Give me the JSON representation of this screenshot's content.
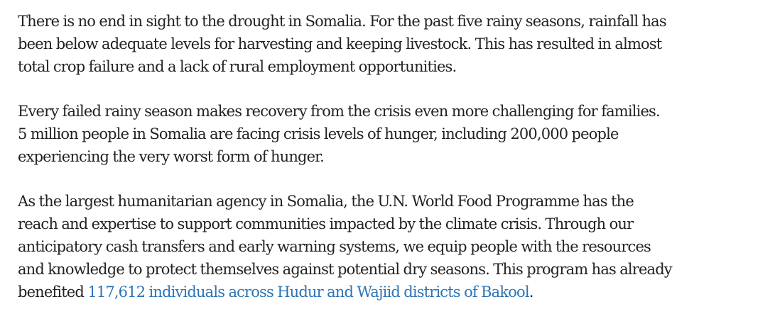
{
  "article": {
    "paragraphs": [
      {
        "lines": [
          "There is no end in sight to the drought in Somalia. For the past five rainy seasons, rainfall has",
          "been below adequate levels for harvesting and keeping livestock. This has resulted in almost",
          "total crop failure and a lack of rural employment opportunities."
        ]
      },
      {
        "lines": [
          "Every failed rainy season makes recovery from the crisis even more challenging for families.",
          "5 million people in Somalia are facing crisis levels of hunger, including 200,000 people",
          "experiencing the very worst form of hunger."
        ]
      },
      {
        "lines": [
          "As the largest humanitarian agency in Somalia, the U.N. World Food Programme has the",
          "reach and expertise to support communities impacted by the climate crisis. Through our",
          "anticipatory cash transfers and early warning systems, we equip people with the resources",
          "and knowledge to protect themselves against potential dry seasons. This program has already"
        ],
        "last_line": {
          "prefix": "benefited ",
          "link_text": "117,612 individuals across Hudur and Wajiid districts of Bakool",
          "suffix": "."
        }
      }
    ],
    "colors": {
      "text": "#222222",
      "link": "#2b74b6",
      "background": "#ffffff"
    }
  }
}
